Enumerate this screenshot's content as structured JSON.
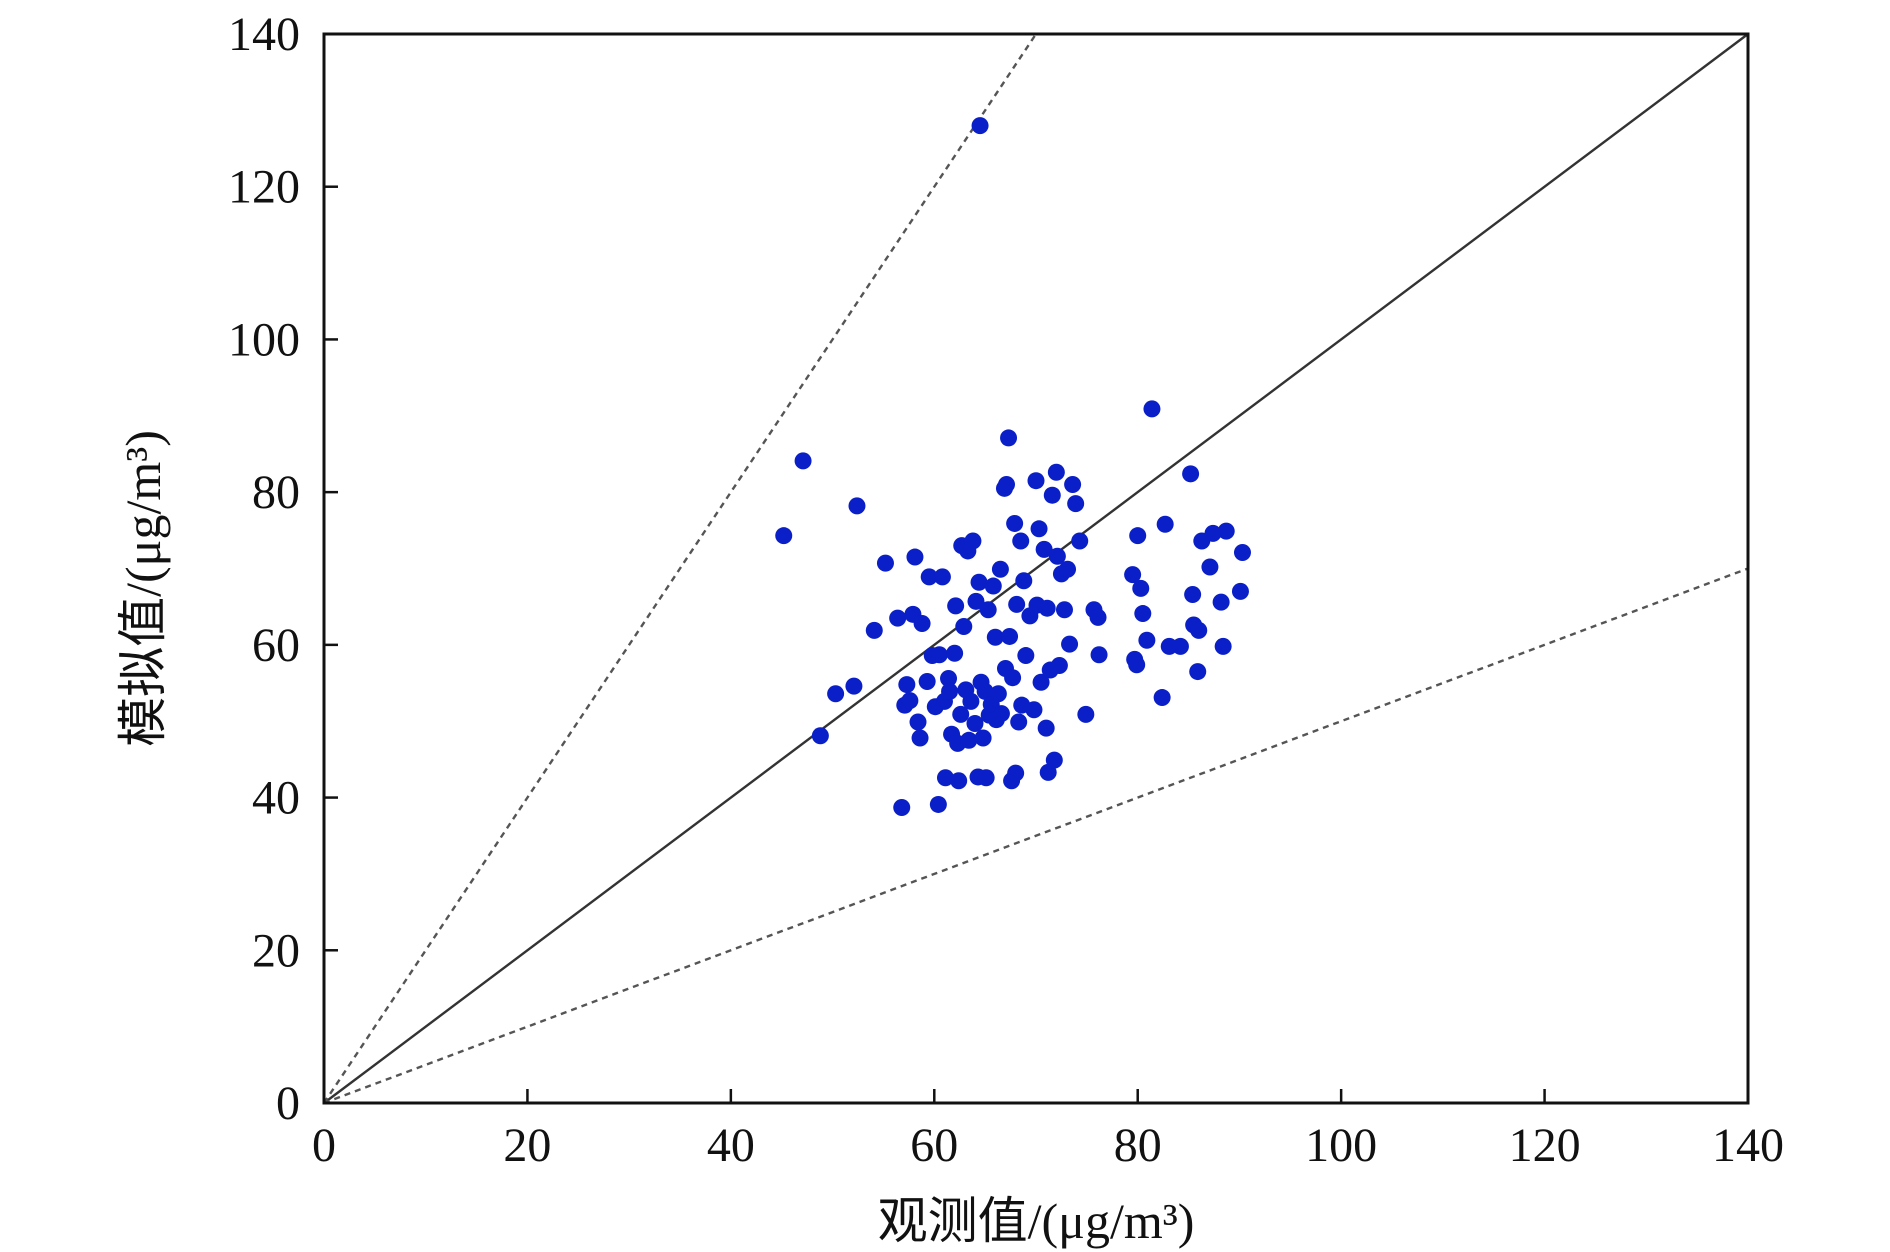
{
  "chart_data": {
    "type": "scatter",
    "title": "",
    "xlabel": "观测值/(μg/m³)",
    "ylabel": "模拟值/(μg/m³)",
    "xlim": [
      0,
      140
    ],
    "ylim": [
      0,
      140
    ],
    "x_ticks": [
      "0",
      "20",
      "40",
      "60",
      "80",
      "100",
      "120",
      "140"
    ],
    "y_ticks": [
      "0",
      "20",
      "40",
      "60",
      "80",
      "100",
      "120",
      "140"
    ],
    "grid": false,
    "legend": "none",
    "colors": {
      "points": "#0a1fc8",
      "reference_line": "#333333",
      "bound_lines": "#555555",
      "axes": "#111111"
    },
    "reference_lines": [
      {
        "style": "solid",
        "slope": 1
      },
      {
        "style": "dashed",
        "slope": 2
      },
      {
        "style": "dashed",
        "slope": 0.5
      }
    ],
    "points": [
      [
        64.5,
        128
      ],
      [
        45.2,
        74.3
      ],
      [
        47.1,
        84.1
      ],
      [
        48.8,
        48.1
      ],
      [
        50.3,
        53.6
      ],
      [
        52.1,
        54.6
      ],
      [
        52.4,
        78.2
      ],
      [
        54.1,
        61.9
      ],
      [
        55.2,
        70.7
      ],
      [
        56.4,
        63.5
      ],
      [
        56.8,
        38.7
      ],
      [
        57.1,
        52.1
      ],
      [
        57.3,
        54.8
      ],
      [
        57.6,
        52.7
      ],
      [
        57.9,
        64.0
      ],
      [
        58.1,
        71.5
      ],
      [
        58.4,
        49.9
      ],
      [
        58.6,
        47.8
      ],
      [
        58.8,
        62.8
      ],
      [
        59.3,
        55.2
      ],
      [
        59.5,
        68.9
      ],
      [
        59.8,
        58.6
      ],
      [
        60.1,
        51.9
      ],
      [
        60.4,
        39.1
      ],
      [
        60.5,
        58.7
      ],
      [
        60.8,
        68.9
      ],
      [
        61.0,
        52.6
      ],
      [
        61.1,
        42.6
      ],
      [
        61.4,
        55.6
      ],
      [
        61.5,
        53.9
      ],
      [
        61.7,
        48.3
      ],
      [
        62.0,
        58.9
      ],
      [
        62.1,
        65.1
      ],
      [
        62.3,
        47.1
      ],
      [
        62.4,
        42.2
      ],
      [
        62.6,
        50.9
      ],
      [
        62.7,
        73.0
      ],
      [
        62.9,
        62.4
      ],
      [
        63.1,
        54.1
      ],
      [
        63.3,
        72.3
      ],
      [
        63.4,
        47.5
      ],
      [
        63.6,
        52.6
      ],
      [
        63.8,
        73.6
      ],
      [
        64.0,
        49.7
      ],
      [
        64.1,
        65.7
      ],
      [
        64.3,
        42.7
      ],
      [
        64.4,
        68.2
      ],
      [
        64.6,
        55.1
      ],
      [
        64.8,
        47.8
      ],
      [
        65.0,
        53.9
      ],
      [
        65.1,
        42.6
      ],
      [
        65.3,
        64.6
      ],
      [
        65.4,
        50.8
      ],
      [
        65.6,
        52.2
      ],
      [
        65.8,
        67.7
      ],
      [
        66.0,
        61.0
      ],
      [
        66.1,
        50.2
      ],
      [
        66.3,
        53.6
      ],
      [
        66.5,
        69.9
      ],
      [
        66.6,
        51.0
      ],
      [
        66.9,
        80.5
      ],
      [
        67.0,
        56.9
      ],
      [
        67.1,
        81.0
      ],
      [
        67.3,
        87.1
      ],
      [
        67.4,
        61.1
      ],
      [
        67.6,
        42.2
      ],
      [
        67.7,
        55.7
      ],
      [
        67.9,
        75.9
      ],
      [
        68.0,
        43.2
      ],
      [
        68.1,
        65.3
      ],
      [
        68.3,
        49.9
      ],
      [
        68.5,
        73.6
      ],
      [
        68.6,
        52.1
      ],
      [
        68.8,
        68.4
      ],
      [
        69.0,
        58.6
      ],
      [
        69.4,
        63.8
      ],
      [
        69.8,
        51.5
      ],
      [
        70.0,
        81.5
      ],
      [
        70.1,
        65.2
      ],
      [
        70.3,
        75.2
      ],
      [
        70.5,
        55.1
      ],
      [
        70.8,
        72.5
      ],
      [
        71.0,
        49.1
      ],
      [
        71.1,
        64.8
      ],
      [
        71.2,
        43.3
      ],
      [
        71.4,
        56.7
      ],
      [
        71.6,
        79.6
      ],
      [
        71.8,
        44.9
      ],
      [
        72.0,
        82.6
      ],
      [
        72.1,
        71.6
      ],
      [
        72.3,
        57.3
      ],
      [
        72.5,
        69.3
      ],
      [
        72.8,
        64.6
      ],
      [
        73.1,
        69.9
      ],
      [
        73.3,
        60.1
      ],
      [
        73.6,
        81.0
      ],
      [
        73.9,
        78.5
      ],
      [
        74.3,
        73.6
      ],
      [
        74.9,
        50.9
      ],
      [
        75.7,
        64.6
      ],
      [
        76.1,
        63.6
      ],
      [
        76.2,
        58.7
      ],
      [
        79.5,
        69.2
      ],
      [
        79.7,
        58.1
      ],
      [
        79.9,
        57.4
      ],
      [
        80.0,
        74.3
      ],
      [
        80.3,
        67.4
      ],
      [
        80.5,
        64.1
      ],
      [
        80.9,
        60.6
      ],
      [
        81.4,
        90.9
      ],
      [
        82.4,
        53.1
      ],
      [
        82.7,
        75.8
      ],
      [
        83.1,
        59.8
      ],
      [
        84.2,
        59.8
      ],
      [
        85.2,
        82.4
      ],
      [
        85.4,
        66.6
      ],
      [
        85.5,
        62.6
      ],
      [
        85.9,
        56.5
      ],
      [
        86.0,
        61.9
      ],
      [
        86.3,
        73.6
      ],
      [
        87.1,
        70.2
      ],
      [
        87.4,
        74.6
      ],
      [
        88.2,
        65.6
      ],
      [
        88.4,
        59.8
      ],
      [
        88.7,
        74.9
      ],
      [
        90.1,
        67.0
      ],
      [
        90.3,
        72.1
      ]
    ]
  }
}
